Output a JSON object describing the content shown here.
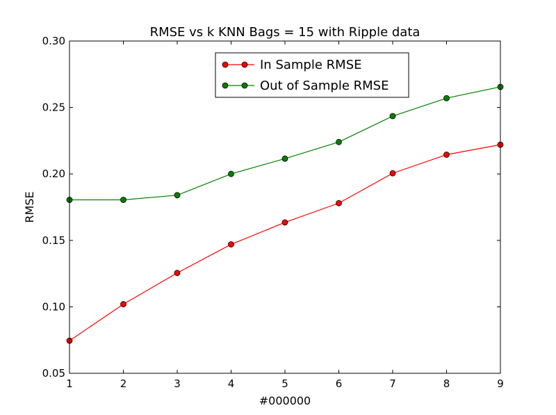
{
  "chart_data": {
    "type": "line",
    "title": "RMSE vs k KNN Bags = 15 with Ripple data",
    "xlabel": "#000000",
    "ylabel": "RMSE",
    "x": [
      1,
      2,
      3,
      4,
      5,
      6,
      7,
      8,
      9
    ],
    "xlim": [
      1,
      9
    ],
    "ylim": [
      0.05,
      0.3
    ],
    "x_ticks": [
      "1",
      "2",
      "3",
      "4",
      "5",
      "6",
      "7",
      "8",
      "9"
    ],
    "y_ticks": [
      "0.05",
      "0.10",
      "0.15",
      "0.20",
      "0.25",
      "0.30"
    ],
    "grid": false,
    "legend_position": "top-center",
    "series": [
      {
        "name": "In Sample RMSE",
        "color": "#ff0000",
        "values": [
          0.0745,
          0.102,
          0.1255,
          0.147,
          0.1635,
          0.178,
          0.2005,
          0.2145,
          0.222
        ]
      },
      {
        "name": "Out of Sample RMSE",
        "color": "#008000",
        "values": [
          0.1805,
          0.1805,
          0.184,
          0.2,
          0.2115,
          0.224,
          0.2435,
          0.257,
          0.2655
        ]
      }
    ]
  }
}
